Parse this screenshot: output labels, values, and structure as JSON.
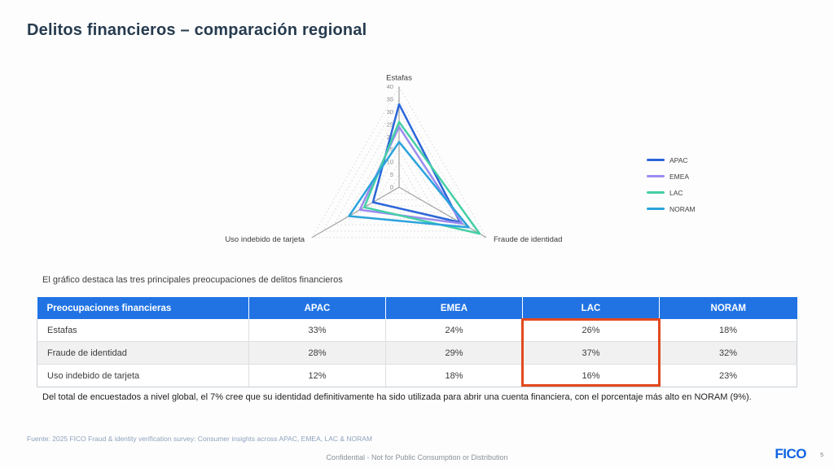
{
  "title": "Delitos financieros – comparación regional",
  "note": "El gráfico destaca las tres principales preocupaciones de delitos financieros",
  "chart_data": {
    "type": "radar",
    "axes": [
      "Estafas",
      "Fraude de identidad",
      "Uso indebido de tarjeta"
    ],
    "max": 40,
    "tick_step": 5,
    "grid": "dotted-concentric-triangles",
    "legend_position": "right",
    "series": [
      {
        "name": "APAC",
        "color": "#2b66d9",
        "values": [
          33,
          28,
          12
        ]
      },
      {
        "name": "EMEA",
        "color": "#9a8cf0",
        "values": [
          24,
          29,
          18
        ]
      },
      {
        "name": "LAC",
        "color": "#44cfa6",
        "values": [
          26,
          37,
          16
        ]
      },
      {
        "name": "NORAM",
        "color": "#2ca3dd",
        "values": [
          18,
          32,
          23
        ]
      }
    ]
  },
  "table": {
    "header_bg": "#2173e4",
    "columns": [
      "Preocupaciones financieras",
      "APAC",
      "EMEA",
      "LAC",
      "NORAM"
    ],
    "rows": [
      {
        "label": "Estafas",
        "values": [
          "33%",
          "24%",
          "26%",
          "18%"
        ]
      },
      {
        "label": "Fraude de identidad",
        "values": [
          "28%",
          "29%",
          "37%",
          "32%"
        ]
      },
      {
        "label": "Uso indebido de tarjeta",
        "values": [
          "12%",
          "18%",
          "16%",
          "23%"
        ]
      }
    ],
    "highlight": {
      "column": "LAC",
      "border_color": "#e14a1e"
    }
  },
  "footnote": "Del total de encuestados a nivel global, el 7% cree que su identidad definitivamente ha sido utilizada para abrir una cuenta financiera, con el porcentaje más alto en NORAM (9%).",
  "source": "Fuente: 2025 FICO Fraud & identity verification survey: Consumer insights across APAC, EMEA, LAC & NORAM",
  "confidential": "Confidential - Not for Public Consumption or Distribution",
  "brand": {
    "logo_text": "FICO",
    "color": "#0e63e2"
  },
  "page_number": "5"
}
